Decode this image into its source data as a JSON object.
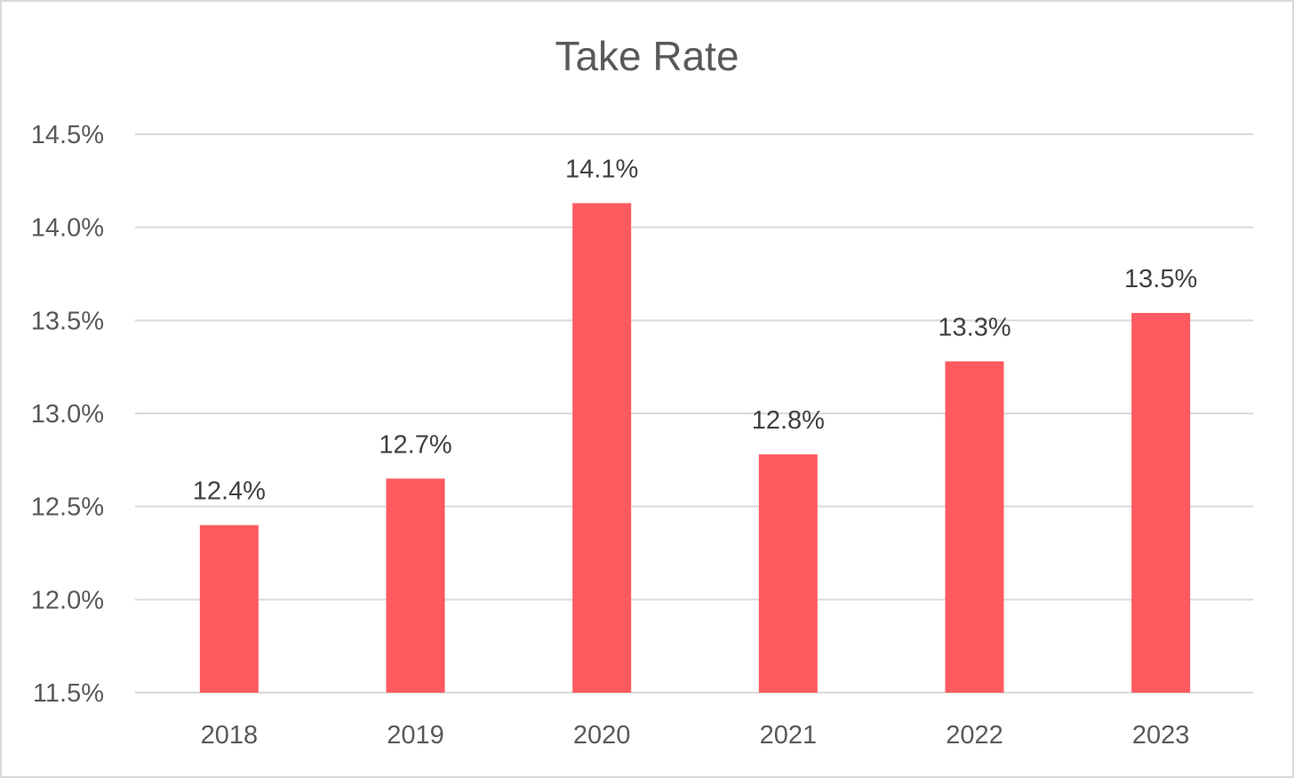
{
  "chart_data": {
    "type": "bar",
    "title": "Take Rate",
    "xlabel": "",
    "ylabel": "",
    "categories": [
      "2018",
      "2019",
      "2020",
      "2021",
      "2022",
      "2023"
    ],
    "values": [
      12.4,
      12.65,
      14.13,
      12.78,
      13.28,
      13.54
    ],
    "data_labels": [
      "12.4%",
      "12.7%",
      "14.1%",
      "12.8%",
      "13.3%",
      "13.5%"
    ],
    "ylim": [
      11.5,
      14.5
    ],
    "yticks": [
      11.5,
      12.0,
      12.5,
      13.0,
      13.5,
      14.0,
      14.5
    ],
    "ytick_labels": [
      "11.5%",
      "12.0%",
      "12.5%",
      "13.0%",
      "13.5%",
      "14.0%",
      "14.5%"
    ],
    "grid": true,
    "legend": "none",
    "bar_color": "#ff5a5f",
    "grid_color": "#d9d9d9"
  }
}
